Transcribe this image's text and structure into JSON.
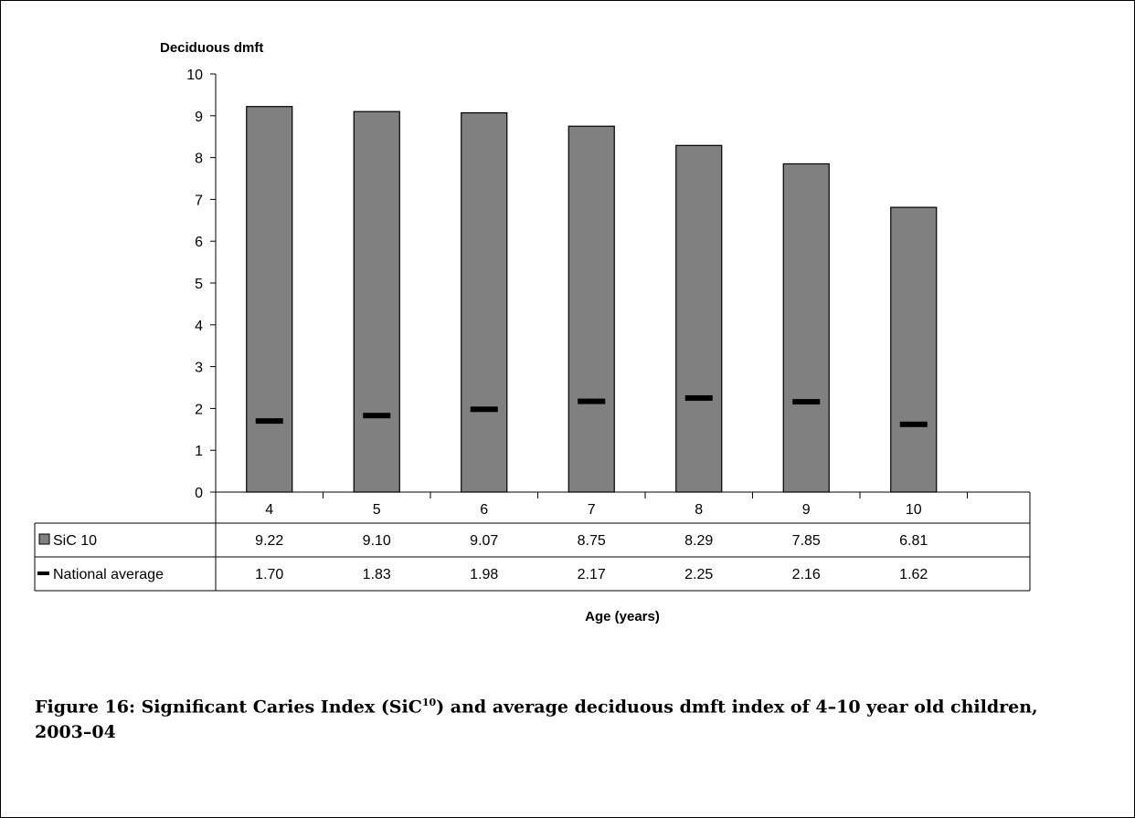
{
  "chart_data": {
    "type": "bar",
    "ylabel": "Deciduous dmft",
    "xlabel": "Age (years)",
    "categories": [
      "4",
      "5",
      "6",
      "7",
      "8",
      "9",
      "10"
    ],
    "ylim": [
      0,
      10
    ],
    "yticks": [
      0,
      1,
      2,
      3,
      4,
      5,
      6,
      7,
      8,
      9,
      10
    ],
    "grid": false,
    "legend_placement": "data-table-left",
    "series": [
      {
        "name": "SiC 10",
        "kind": "bar",
        "color": "#808080",
        "values": [
          "9.22",
          "9.10",
          "9.07",
          "8.75",
          "8.29",
          "7.85",
          "6.81"
        ]
      },
      {
        "name": "National average",
        "kind": "marker",
        "color": "#000000",
        "values": [
          "1.70",
          "1.83",
          "1.98",
          "2.17",
          "2.25",
          "2.16",
          "1.62"
        ]
      }
    ]
  },
  "caption": {
    "prefix": "Figure 16: Significant Caries Index (SiC",
    "superscript": "10",
    "suffix": ") and average deciduous dmft index of 4–10 year old children, 2003–04"
  }
}
